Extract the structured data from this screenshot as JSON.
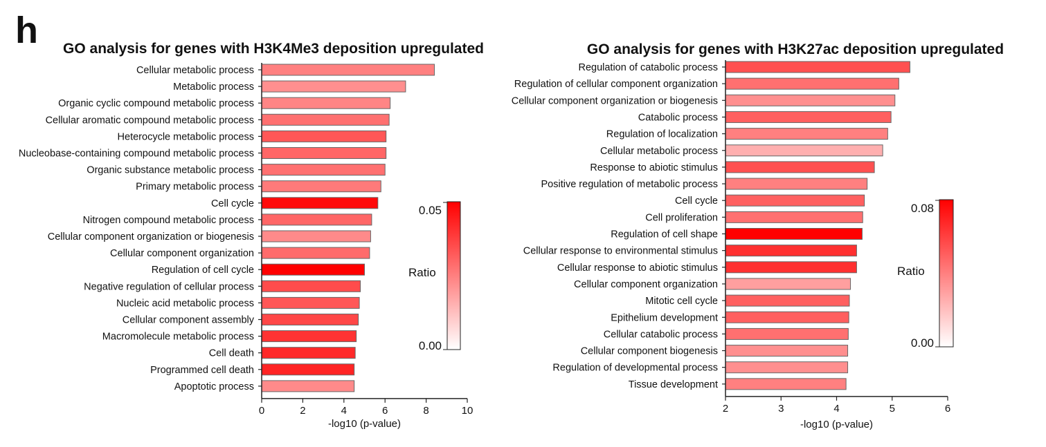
{
  "panel_letter": "h",
  "chart_data": [
    {
      "type": "bar",
      "orientation": "horizontal",
      "title": "GO analysis for genes with H3K4Me3 deposition upregulated",
      "xlabel": "-log10 (p-value)",
      "xlim": [
        0,
        10
      ],
      "xticks": [
        0,
        2,
        4,
        6,
        8,
        10
      ],
      "categories": [
        "Cellular metabolic process",
        "Metabolic process",
        "Organic cyclic compound metabolic process",
        "Cellular aromatic compound metabolic process",
        "Heterocycle metabolic process",
        "Nucleobase-containing compound metabolic process",
        "Organic substance metabolic process",
        "Primary metabolic process",
        "Cell cycle",
        "Nitrogen compound metabolic process",
        "Cellular component organization or biogenesis",
        "Cellular component organization",
        "Regulation of cell cycle",
        "Negative regulation of cellular process",
        "Nucleic acid metabolic process",
        "Cellular component assembly",
        "Macromolecule metabolic process",
        "Cell death",
        "Programmed cell death",
        "Apoptotic process"
      ],
      "values": [
        8.4,
        7.0,
        6.25,
        6.2,
        6.05,
        6.05,
        6.0,
        5.8,
        5.65,
        5.35,
        5.3,
        5.25,
        5.0,
        4.8,
        4.75,
        4.7,
        4.6,
        4.55,
        4.5,
        4.5
      ],
      "ratio": [
        0.025,
        0.022,
        0.024,
        0.028,
        0.033,
        0.03,
        0.028,
        0.026,
        0.048,
        0.03,
        0.023,
        0.029,
        0.053,
        0.035,
        0.033,
        0.036,
        0.04,
        0.042,
        0.043,
        0.023
      ],
      "colorbar": {
        "label": "Ratio",
        "min": 0.0,
        "max": 0.05,
        "min_label": "0.00",
        "max_label": "0.05",
        "color_low": "#ffffff",
        "color_high": "#ff0000"
      }
    },
    {
      "type": "bar",
      "orientation": "horizontal",
      "title": "GO analysis for genes with H3K27ac deposition upregulated",
      "xlabel": "-log10 (p-value)",
      "xlim": [
        2,
        6
      ],
      "xticks": [
        2,
        3,
        4,
        5,
        6
      ],
      "categories": [
        "Regulation of catabolic process",
        "Regulation of cellular component organization",
        "Cellular component organization or biogenesis",
        "Catabolic process",
        "Regulation of localization",
        "Cellular metabolic process",
        "Response to abiotic stimulus",
        "Positive regulation of metabolic process",
        "Cell cycle",
        "Cell proliferation",
        "Regulation of cell shape",
        "Cellular response to environmental stimulus",
        "Cellular response to abiotic stimulus",
        "Cellular component organization",
        "Mitotic cell cycle",
        "Epithelium development",
        "Cellular catabolic process",
        "Cellular component biogenesis",
        "Regulation of developmental process",
        "Tissue development"
      ],
      "values": [
        5.32,
        5.12,
        5.05,
        4.98,
        4.92,
        4.83,
        4.68,
        4.55,
        4.5,
        4.47,
        4.46,
        4.36,
        4.36,
        4.25,
        4.23,
        4.22,
        4.21,
        4.2,
        4.2,
        4.17
      ],
      "ratio": [
        0.055,
        0.045,
        0.035,
        0.05,
        0.04,
        0.025,
        0.055,
        0.04,
        0.05,
        0.045,
        0.08,
        0.065,
        0.065,
        0.03,
        0.05,
        0.05,
        0.045,
        0.035,
        0.035,
        0.04
      ],
      "colorbar": {
        "label": "Ratio",
        "min": 0.0,
        "max": 0.08,
        "min_label": "0.00",
        "max_label": "0.08",
        "color_low": "#ffffff",
        "color_high": "#ff0000"
      }
    }
  ]
}
